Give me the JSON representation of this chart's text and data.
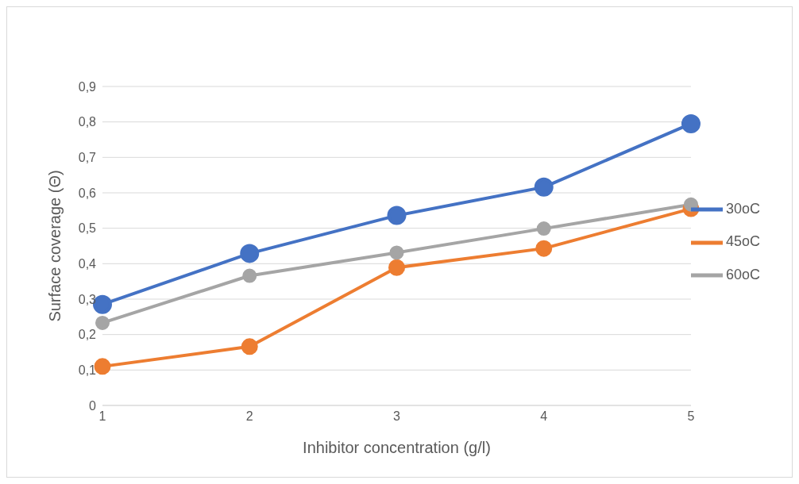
{
  "chart_data": {
    "type": "line",
    "xlabel": "Inhibitor concentration (g/l)",
    "ylabel": "Surface coverage (Θ)",
    "categories": [
      "1",
      "2",
      "3",
      "4",
      "5"
    ],
    "series": [
      {
        "name": "30oC",
        "color": "#4472c4",
        "values": [
          0.285,
          0.429,
          0.536,
          0.616,
          0.795
        ]
      },
      {
        "name": "45oC",
        "color": "#ed7d31",
        "values": [
          0.11,
          0.166,
          0.389,
          0.443,
          0.555
        ]
      },
      {
        "name": "60oC",
        "color": "#a5a5a5",
        "values": [
          0.233,
          0.366,
          0.431,
          0.499,
          0.567
        ]
      }
    ],
    "ylim": [
      0,
      0.9
    ],
    "yticks": [
      0,
      {
        "value": 0.1,
        "label": "0,1"
      },
      {
        "value": 0.2,
        "label": "0,2"
      },
      {
        "value": 0.3,
        "label": "0,3"
      },
      {
        "value": 0.4,
        "label": "0,4"
      },
      {
        "value": 0.5,
        "label": "0,5"
      },
      {
        "value": 0.6,
        "label": "0,6"
      },
      {
        "value": 0.7,
        "label": "0,7"
      },
      {
        "value": 0.8,
        "label": "0,8"
      },
      {
        "value": 0.9,
        "label": "0,9"
      }
    ],
    "grid": "y",
    "legend": "right",
    "marker": "circle",
    "line_style": "solid"
  }
}
